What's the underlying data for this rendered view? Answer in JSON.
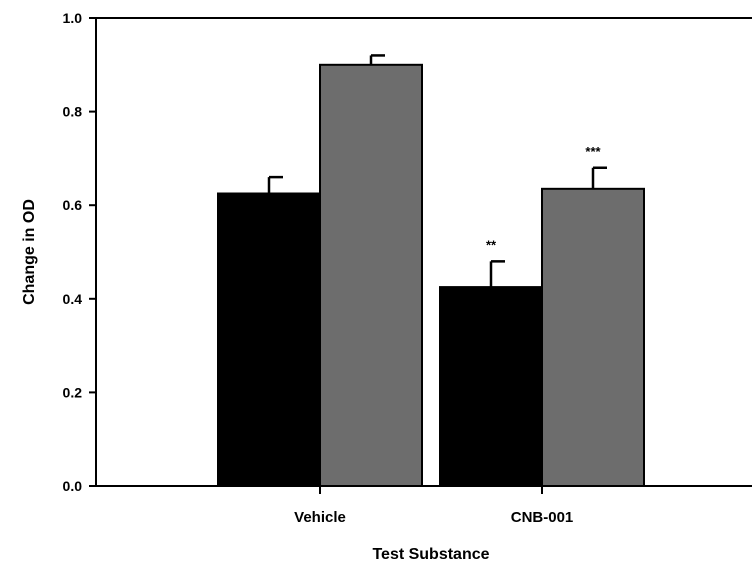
{
  "chart_data": {
    "type": "bar",
    "title": "",
    "xlabel": "Test Substance",
    "ylabel": "Change in OD",
    "categories": [
      "Vehicle",
      "CNB-001"
    ],
    "series": [
      {
        "values": [
          0.625,
          0.425
        ],
        "errors": [
          0.035,
          0.055
        ],
        "significance": [
          "",
          "**"
        ],
        "color": "#000000"
      },
      {
        "values": [
          0.9,
          0.635
        ],
        "errors": [
          0.02,
          0.045
        ],
        "significance": [
          "",
          "***"
        ],
        "color": "#6d6d6d"
      }
    ],
    "ylim": [
      0,
      1
    ],
    "yticks": [
      "0.0",
      "0.2",
      "0.4",
      "0.6",
      "0.8",
      "1.0"
    ],
    "grid": false,
    "legend": "none"
  }
}
